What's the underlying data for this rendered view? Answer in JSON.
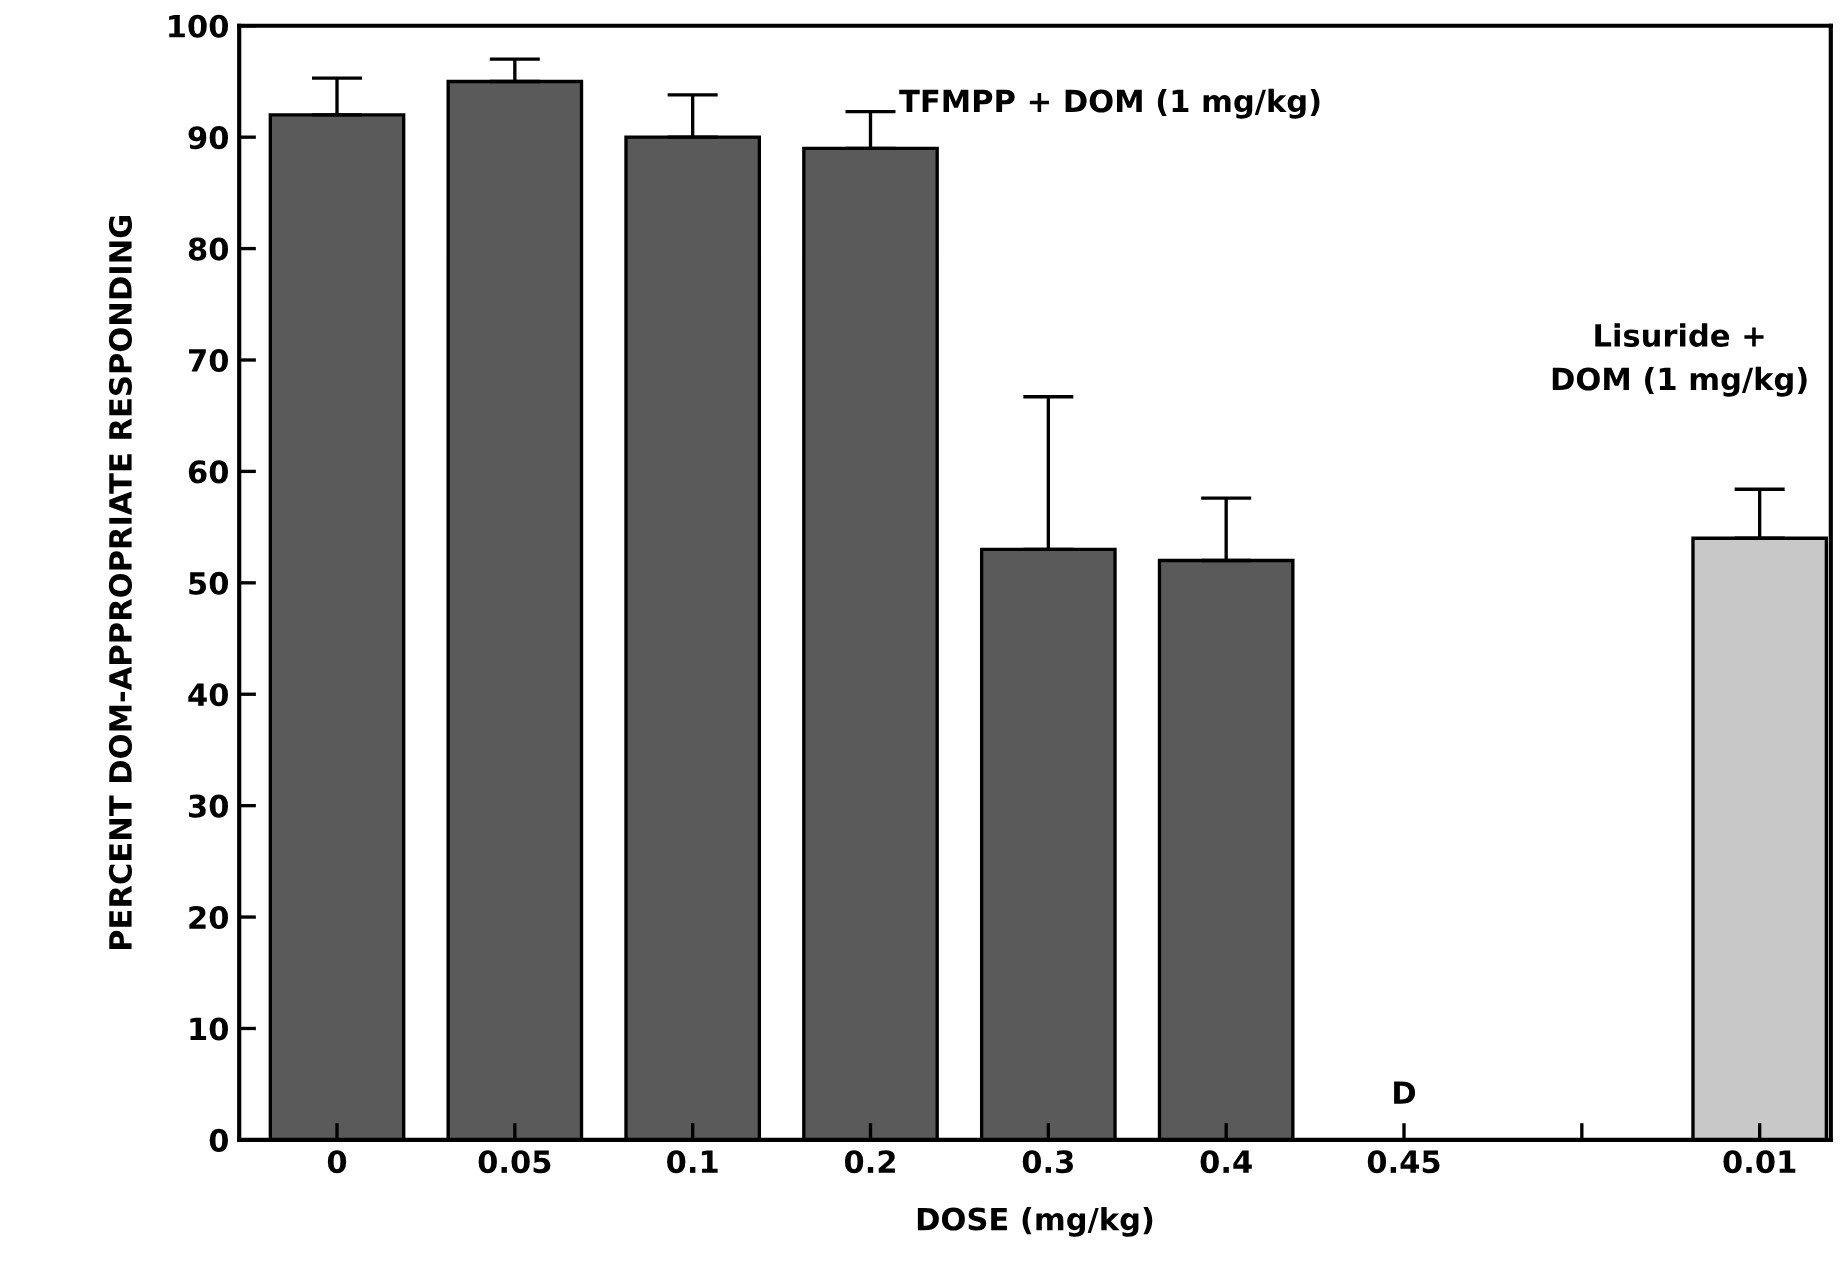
{
  "chart_data": {
    "type": "bar",
    "xlabel": "DOSE (mg/kg)",
    "ylabel": "PERCENT DOM-APPROPRIATE RESPONDING",
    "categories": [
      "0",
      "0.05",
      "0.1",
      "0.2",
      "0.3",
      "0.4",
      "0.45",
      null,
      "0.01"
    ],
    "values": [
      92,
      95,
      90,
      89,
      53,
      52,
      null,
      null,
      54
    ],
    "errors": [
      [
        92,
        95.3
      ],
      [
        95,
        97
      ],
      [
        90,
        93.8
      ],
      [
        89,
        92.3
      ],
      [
        53,
        66.7
      ],
      [
        52,
        57.6
      ],
      null,
      null,
      [
        54,
        58.4
      ]
    ],
    "colors": [
      "#5a5a5a",
      "#5a5a5a",
      "#5a5a5a",
      "#5a5a5a",
      "#5a5a5a",
      "#5a5a5a",
      "#5a5a5a",
      "#5a5a5a",
      "#c8c8c8"
    ],
    "ylim": [
      0,
      100
    ],
    "yticks": [
      0,
      10,
      20,
      30,
      40,
      50,
      60,
      70,
      80,
      90,
      100
    ],
    "grid": false,
    "annotations": [
      "TFMPP + DOM (1 mg/kg)",
      "Lisuride +\nDOM (1 mg/kg)",
      "D"
    ]
  }
}
